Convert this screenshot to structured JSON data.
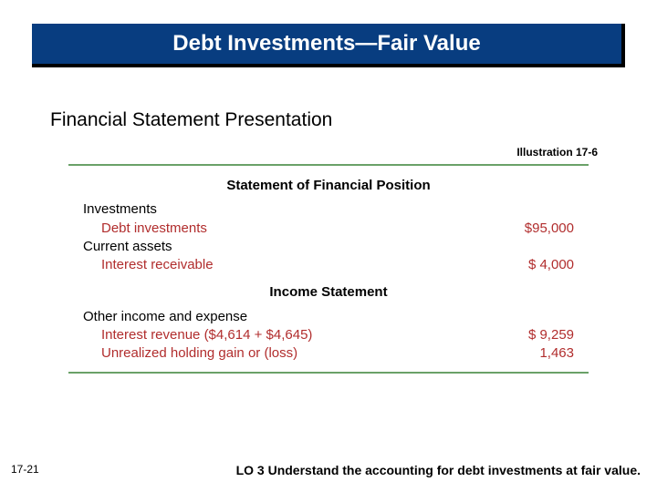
{
  "colors": {
    "banner_bg": "#083d80",
    "banner_text": "#ffffff",
    "figure_rule": "#6aa168",
    "accent_red": "#b12d2d",
    "text": "#000000",
    "background": "#ffffff"
  },
  "typography": {
    "family": "Arial",
    "title_size_pt": 18,
    "subheading_size_pt": 16,
    "figure_size_pt": 11,
    "footer_size_pt": 10
  },
  "title": "Debt Investments—Fair Value",
  "subheading": "Financial Statement Presentation",
  "illustration_label": "Illustration 17-6",
  "figure": {
    "statements": [
      {
        "title": "Statement of Financial Position",
        "groups": [
          {
            "section": "Investments",
            "lines": [
              {
                "label": "Debt investments",
                "amount": "$95,000"
              }
            ]
          },
          {
            "section": "Current assets",
            "lines": [
              {
                "label": "Interest receivable",
                "amount": "$  4,000"
              }
            ]
          }
        ]
      },
      {
        "title": "Income Statement",
        "groups": [
          {
            "section": "Other income and expense",
            "lines": [
              {
                "label": "Interest revenue ($4,614 + $4,645)",
                "amount": "$  9,259"
              },
              {
                "label": "Unrealized holding gain or (loss)",
                "amount": "1,463"
              }
            ]
          }
        ]
      }
    ]
  },
  "page_number": "17-21",
  "learning_objective": "LO 3  Understand the accounting for debt investments at fair value."
}
